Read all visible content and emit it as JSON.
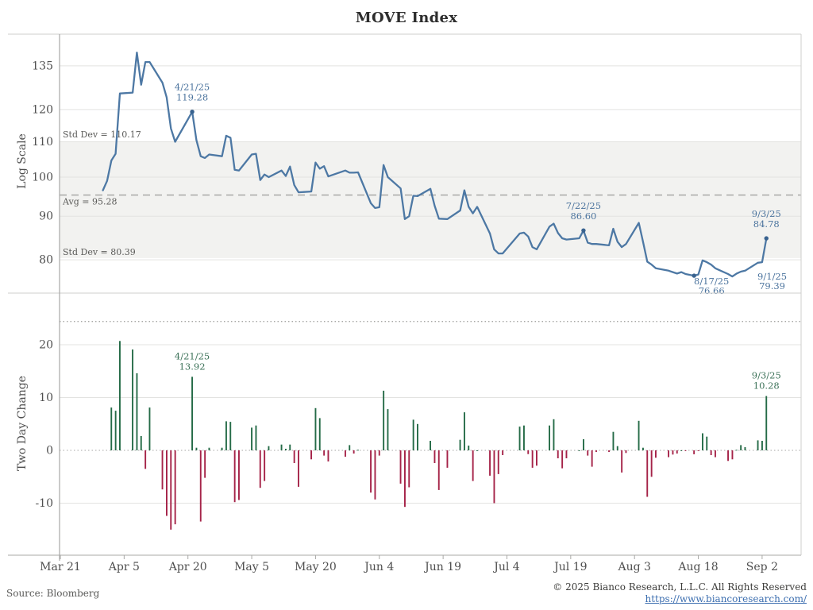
{
  "title": "MOVE Index",
  "footer": {
    "source": "Source: Bloomberg",
    "copyright": "© 2025 Bianco Research, L.L.C. All Rights Reserved",
    "url": "https://www.biancoresearch.com/"
  },
  "colors": {
    "line_blue": "#4d78a4",
    "dot_blue": "#38628f",
    "annotation_blue": "#4c749e",
    "bar_green": "#256b47",
    "bar_red": "#a52348",
    "annotation_green": "#3c7258",
    "band_gray": "#f2f2f0",
    "gridline": "#e3e3e1",
    "dashed_line": "#a2a2a0",
    "dotted_line": "#9a9a98",
    "frame": "#cfcfcd",
    "axis": "#a8a8a6",
    "tick_text": "#4f4f4f",
    "ref_label_text": "#5a5a58"
  },
  "xticks": [
    "Mar 21",
    "Apr 5",
    "Apr 20",
    "May 5",
    "May 20",
    "Jun 4",
    "Jun 19",
    "Jul 4",
    "Jul 19",
    "Aug 3",
    "Aug 18",
    "Sep 2"
  ],
  "chart_data": [
    {
      "type": "line",
      "panel": "top",
      "title": "MOVE Index",
      "ylabel": "Log Scale",
      "yscale": "log",
      "yticks": [
        80,
        90,
        100,
        110,
        120,
        135
      ],
      "reference_lines": {
        "std_dev_upper": {
          "label": "Std Dev = 110.17",
          "value": 110.17
        },
        "avg": {
          "label": "Avg = 95.28",
          "value": 95.28
        },
        "std_dev_lower": {
          "label": "Std Dev = 80.39",
          "value": 80.39
        }
      },
      "series": [
        [
          "3/31",
          96.5
        ],
        [
          "4/1",
          99.0
        ],
        [
          "4/2",
          104.6
        ],
        [
          "4/3",
          106.5
        ],
        [
          "4/4",
          125.3
        ],
        [
          "4/7",
          125.6
        ],
        [
          "4/8",
          139.9
        ],
        [
          "4/9",
          128.3
        ],
        [
          "4/10",
          136.4
        ],
        [
          "4/11",
          136.4
        ],
        [
          "4/14",
          129.0
        ],
        [
          "4/15",
          124.0
        ],
        [
          "4/16",
          114.0
        ],
        [
          "4/17",
          110.0
        ],
        [
          "4/21",
          119.28
        ],
        [
          "4/22",
          110.5
        ],
        [
          "4/23",
          105.8
        ],
        [
          "4/24",
          105.3
        ],
        [
          "4/25",
          106.3
        ],
        [
          "4/28",
          105.8
        ],
        [
          "4/29",
          111.8
        ],
        [
          "4/30",
          111.2
        ],
        [
          "5/1",
          102.0
        ],
        [
          "5/2",
          101.8
        ],
        [
          "5/5",
          106.3
        ],
        [
          "5/6",
          106.5
        ],
        [
          "5/7",
          99.2
        ],
        [
          "5/8",
          100.7
        ],
        [
          "5/9",
          100.0
        ],
        [
          "5/12",
          101.8
        ],
        [
          "5/13",
          100.3
        ],
        [
          "5/14",
          102.9
        ],
        [
          "5/15",
          97.9
        ],
        [
          "5/16",
          96.0
        ],
        [
          "5/19",
          96.2
        ],
        [
          "5/20",
          104.0
        ],
        [
          "5/21",
          102.3
        ],
        [
          "5/22",
          103.0
        ],
        [
          "5/23",
          100.2
        ],
        [
          "5/27",
          101.8
        ],
        [
          "5/28",
          101.2
        ],
        [
          "5/29",
          101.2
        ],
        [
          "5/30",
          101.3
        ],
        [
          "6/2",
          93.2
        ],
        [
          "6/3",
          92.0
        ],
        [
          "6/4",
          92.2
        ],
        [
          "6/5",
          103.3
        ],
        [
          "6/6",
          100.0
        ],
        [
          "6/9",
          97.0
        ],
        [
          "6/10",
          89.3
        ],
        [
          "6/11",
          90.0
        ],
        [
          "6/12",
          95.1
        ],
        [
          "6/13",
          95.0
        ],
        [
          "6/16",
          96.9
        ],
        [
          "6/17",
          92.6
        ],
        [
          "6/18",
          89.4
        ],
        [
          "6/20",
          89.3
        ],
        [
          "6/23",
          91.4
        ],
        [
          "6/24",
          96.5
        ],
        [
          "6/25",
          92.3
        ],
        [
          "6/26",
          90.7
        ],
        [
          "6/27",
          92.3
        ],
        [
          "6/30",
          85.9
        ],
        [
          "7/1",
          82.3
        ],
        [
          "7/2",
          81.4
        ],
        [
          "7/3",
          81.4
        ],
        [
          "7/7",
          85.9
        ],
        [
          "7/8",
          86.1
        ],
        [
          "7/9",
          85.2
        ],
        [
          "7/10",
          82.8
        ],
        [
          "7/11",
          82.3
        ],
        [
          "7/14",
          87.5
        ],
        [
          "7/15",
          88.2
        ],
        [
          "7/16",
          86.0
        ],
        [
          "7/17",
          84.8
        ],
        [
          "7/18",
          84.5
        ],
        [
          "7/21",
          84.8
        ],
        [
          "7/22",
          86.6
        ],
        [
          "7/23",
          83.8
        ],
        [
          "7/24",
          83.5
        ],
        [
          "7/25",
          83.5
        ],
        [
          "7/28",
          83.2
        ],
        [
          "7/29",
          87.0
        ],
        [
          "7/30",
          84.0
        ],
        [
          "7/31",
          82.8
        ],
        [
          "8/1",
          83.5
        ],
        [
          "8/4",
          88.4
        ],
        [
          "8/5",
          84.0
        ],
        [
          "8/6",
          79.6
        ],
        [
          "8/7",
          79.0
        ],
        [
          "8/8",
          78.2
        ],
        [
          "8/11",
          77.7
        ],
        [
          "8/12",
          77.4
        ],
        [
          "8/13",
          77.1
        ],
        [
          "8/14",
          77.4
        ],
        [
          "8/15",
          77.0
        ],
        [
          "8/17",
          76.66
        ],
        [
          "8/18",
          76.9
        ],
        [
          "8/19",
          79.9
        ],
        [
          "8/20",
          79.5
        ],
        [
          "8/21",
          79.0
        ],
        [
          "8/22",
          78.2
        ],
        [
          "8/25",
          77.0
        ],
        [
          "8/26",
          76.5
        ],
        [
          "8/27",
          77.1
        ],
        [
          "8/28",
          77.5
        ],
        [
          "8/29",
          77.7
        ],
        [
          "9/1",
          79.39
        ],
        [
          "9/2",
          79.5
        ],
        [
          "9/3",
          84.78
        ]
      ],
      "annotations": [
        {
          "date": "4/21",
          "line1": "4/21/25",
          "line2": "119.28",
          "value": 119.28,
          "placement": "above",
          "dot": true
        },
        {
          "date": "7/22",
          "line1": "7/22/25",
          "line2": "86.60",
          "value": 86.6,
          "placement": "above",
          "dot": true
        },
        {
          "date": "9/3",
          "line1": "9/3/25",
          "line2": "84.78",
          "value": 84.78,
          "placement": "above",
          "dot": true
        },
        {
          "date": "8/17",
          "line1": "8/17/25",
          "line2": "76.66",
          "value": 76.66,
          "placement": "below-right",
          "dot": true
        },
        {
          "date": "9/1",
          "line1": "9/1/25",
          "line2": "79.39",
          "value": 79.39,
          "placement": "below-right",
          "dot": false
        }
      ]
    },
    {
      "type": "bar",
      "panel": "bottom",
      "ylabel": "Two Day Change",
      "yticks": [
        -10,
        0,
        10,
        20
      ],
      "derivation": "change vs. two observations earlier of the MOVE Index series",
      "dotted_reference_value": 24.4,
      "overrides": {
        "4/21": 13.92,
        "9/3": 10.28
      },
      "annotations": [
        {
          "date": "4/21",
          "line1": "4/21/25",
          "line2": "13.92",
          "value": 13.92,
          "placement": "above-bar"
        },
        {
          "date": "9/3",
          "line1": "9/3/25",
          "line2": "10.28",
          "value": 10.28,
          "placement": "above-bar"
        }
      ]
    }
  ]
}
